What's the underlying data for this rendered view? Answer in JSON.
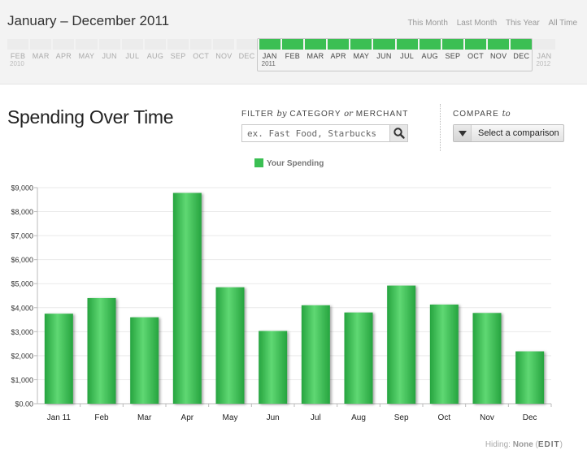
{
  "timeline": {
    "title": "January – December 2011",
    "period_links": [
      "This Month",
      "Last Month",
      "This Year",
      "All Time"
    ],
    "months": [
      {
        "label": "FEB",
        "year": "2010",
        "selected": false
      },
      {
        "label": "MAR",
        "year": "",
        "selected": false
      },
      {
        "label": "APR",
        "year": "",
        "selected": false
      },
      {
        "label": "MAY",
        "year": "",
        "selected": false
      },
      {
        "label": "JUN",
        "year": "",
        "selected": false
      },
      {
        "label": "JUL",
        "year": "",
        "selected": false
      },
      {
        "label": "AUG",
        "year": "",
        "selected": false
      },
      {
        "label": "SEP",
        "year": "",
        "selected": false
      },
      {
        "label": "OCT",
        "year": "",
        "selected": false
      },
      {
        "label": "NOV",
        "year": "",
        "selected": false
      },
      {
        "label": "DEC",
        "year": "",
        "selected": false
      },
      {
        "label": "JAN",
        "year": "2011",
        "selected": true
      },
      {
        "label": "FEB",
        "year": "",
        "selected": true
      },
      {
        "label": "MAR",
        "year": "",
        "selected": true
      },
      {
        "label": "APR",
        "year": "",
        "selected": true
      },
      {
        "label": "MAY",
        "year": "",
        "selected": true
      },
      {
        "label": "JUN",
        "year": "",
        "selected": true
      },
      {
        "label": "JUL",
        "year": "",
        "selected": true
      },
      {
        "label": "AUG",
        "year": "",
        "selected": true
      },
      {
        "label": "SEP",
        "year": "",
        "selected": true
      },
      {
        "label": "OCT",
        "year": "",
        "selected": true
      },
      {
        "label": "NOV",
        "year": "",
        "selected": true
      },
      {
        "label": "DEC",
        "year": "",
        "selected": true
      },
      {
        "label": "JAN",
        "year": "2012",
        "selected": false
      }
    ]
  },
  "section": {
    "title": "Spending Over Time"
  },
  "filter": {
    "label_a": "FILTER ",
    "label_by": "by",
    "label_b": " CATEGORY ",
    "label_or": "or",
    "label_c": " MERCHANT",
    "placeholder": "ex. Fast Food, Starbucks",
    "search_icon": "magnifier-icon"
  },
  "compare": {
    "label_a": "COMPARE ",
    "label_to": "to",
    "button_label": "Select a comparison",
    "arrow_icon": "triangle-down-icon"
  },
  "colors": {
    "accent": "#3bbf53",
    "bar_dark": "#26a43f",
    "bar_light": "#5fd873"
  },
  "chart_data": {
    "type": "bar",
    "categories": [
      "Jan 11",
      "Feb",
      "Mar",
      "Apr",
      "May",
      "Jun",
      "Jul",
      "Aug",
      "Sep",
      "Oct",
      "Nov",
      "Dec"
    ],
    "series": [
      {
        "name": "Your Spending",
        "values": [
          3750,
          4400,
          3600,
          8780,
          4850,
          3030,
          4100,
          3800,
          4920,
          4130,
          3780,
          2180
        ]
      }
    ],
    "yticks": [
      "$0.00",
      "$1,000",
      "$2,000",
      "$3,000",
      "$4,000",
      "$5,000",
      "$6,000",
      "$7,000",
      "$8,000",
      "$9,000"
    ],
    "ylim": [
      0,
      9000
    ],
    "grid": true,
    "legend_position": "top-center"
  },
  "footer": {
    "hiding_label": "Hiding:",
    "hiding_value": "None",
    "open_paren": "(",
    "edit_label": "EDIT",
    "close_paren": ")"
  }
}
